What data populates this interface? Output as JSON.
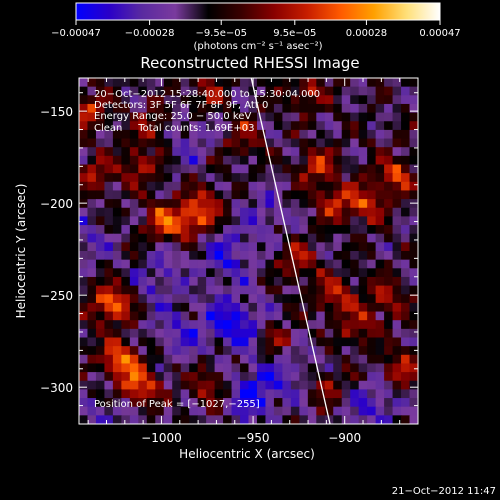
{
  "chart_data": {
    "type": "heatmap",
    "title": "Reconstructed RHESSI Image",
    "xlabel": "Heliocentric X (arcsec)",
    "ylabel": "Heliocentric Y (arcsec)",
    "xlim": [
      -1045,
      -860
    ],
    "ylim": [
      -320,
      -132
    ],
    "xticks": [
      -1000,
      -950,
      -900
    ],
    "yticks": [
      -150,
      -200,
      -250,
      -300
    ],
    "colorbar": {
      "range": [
        -0.00047,
        0.00047
      ],
      "tick_values": [
        -0.00047,
        -0.00028,
        -9.5e-05,
        9.5e-05,
        0.00028,
        0.00047
      ],
      "tick_labels": [
        "−0.00047",
        "−0.00028",
        "−9.5e−05",
        "9.5e−05",
        "0.00028",
        "0.00047"
      ],
      "units_label": "(photons cm⁻² s⁻¹ asec⁻²)",
      "colormap": [
        "#0000ff",
        "#2a00c8",
        "#5a2aa0",
        "#7a3a9e",
        "#000000",
        "#3a0000",
        "#8a0000",
        "#c81e00",
        "#ff5a00",
        "#ffa000",
        "#ffe07a",
        "#ffffff"
      ]
    },
    "info_lines": [
      "20−Oct−2012 15:28:40.000 to 15:30:04.000",
      "Detectors: 3F 5F 6F 7F 8F 9F, Att 0",
      "Energy Range: 25.0 − 50.0 keV",
      "Clean     Total counts: 1.69E+03"
    ],
    "peak_label": "Position of Peak = [−1027,−255]",
    "peak_position": [
      -1027,
      -255
    ],
    "limb_line": [
      [
        -951,
        -132
      ],
      [
        -908,
        -320
      ]
    ],
    "hot_regions": [
      {
        "x": -1027,
        "y": -255,
        "intensity": 1.0
      },
      {
        "x": -1023,
        "y": -285,
        "intensity": 0.95
      },
      {
        "x": -1012,
        "y": -300,
        "intensity": 0.85
      },
      {
        "x": -985,
        "y": -210,
        "intensity": 0.75
      },
      {
        "x": -1000,
        "y": -210,
        "intensity": 0.6
      },
      {
        "x": -975,
        "y": -200,
        "intensity": 0.55
      },
      {
        "x": -1012,
        "y": -180,
        "intensity": 0.55
      },
      {
        "x": -1040,
        "y": -150,
        "intensity": 0.6
      },
      {
        "x": -1035,
        "y": -185,
        "intensity": 0.55
      },
      {
        "x": -1005,
        "y": -158,
        "intensity": 0.45
      },
      {
        "x": -915,
        "y": -180,
        "intensity": 0.65
      },
      {
        "x": -905,
        "y": -200,
        "intensity": 0.6
      },
      {
        "x": -888,
        "y": -200,
        "intensity": 0.65
      },
      {
        "x": -872,
        "y": -185,
        "intensity": 0.7
      },
      {
        "x": -925,
        "y": -232,
        "intensity": 0.55
      },
      {
        "x": -905,
        "y": -250,
        "intensity": 0.6
      },
      {
        "x": -878,
        "y": -252,
        "intensity": 0.55
      },
      {
        "x": -893,
        "y": -268,
        "intensity": 0.5
      },
      {
        "x": -870,
        "y": -290,
        "intensity": 0.55
      },
      {
        "x": -910,
        "y": -300,
        "intensity": 0.45
      },
      {
        "x": -975,
        "y": -300,
        "intensity": 0.45
      },
      {
        "x": -935,
        "y": -275,
        "intensity": 0.45
      },
      {
        "x": -920,
        "y": -140,
        "intensity": 0.5
      },
      {
        "x": -975,
        "y": -140,
        "intensity": 0.45
      },
      {
        "x": -955,
        "y": -165,
        "intensity": 0.4
      }
    ],
    "cold_regions": [
      {
        "x": -960,
        "y": -265,
        "intensity": 0.8
      },
      {
        "x": -950,
        "y": -305,
        "intensity": 0.7
      },
      {
        "x": -965,
        "y": -230,
        "intensity": 0.55
      },
      {
        "x": -990,
        "y": -270,
        "intensity": 0.45
      },
      {
        "x": -1000,
        "y": -240,
        "intensity": 0.4
      },
      {
        "x": -945,
        "y": -205,
        "intensity": 0.4
      },
      {
        "x": -930,
        "y": -290,
        "intensity": 0.45
      },
      {
        "x": -885,
        "y": -310,
        "intensity": 0.5
      },
      {
        "x": -985,
        "y": -165,
        "intensity": 0.35
      },
      {
        "x": -1040,
        "y": -220,
        "intensity": 0.35
      },
      {
        "x": -1030,
        "y": -315,
        "intensity": 0.35
      }
    ]
  },
  "timestamp": "21−Oct−2012 11:47"
}
